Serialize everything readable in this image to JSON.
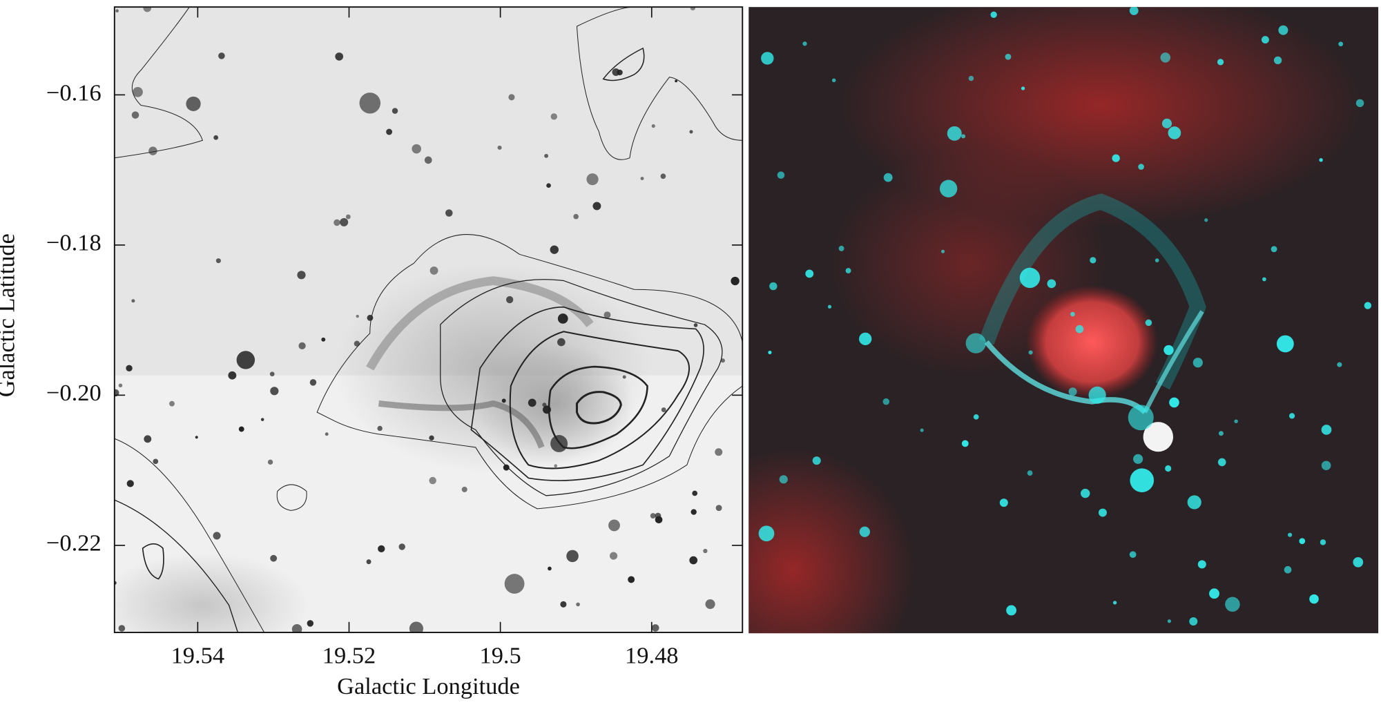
{
  "chart_data": {
    "type": "image",
    "xlabel": "Galactic Longitude",
    "ylabel": "Galactic Latitude",
    "xlim": [
      19.551,
      19.468
    ],
    "ylim": [
      -0.2316,
      -0.1483
    ],
    "xticks": [
      19.54,
      19.52,
      19.5,
      19.48
    ],
    "yticks": [
      {
        "value": -0.16,
        "label": "−0.16"
      },
      {
        "value": -0.18,
        "label": "−0.18"
      },
      {
        "value": -0.2,
        "label": "−0.20"
      },
      {
        "value": -0.22,
        "label": "−0.22"
      }
    ]
  }
}
